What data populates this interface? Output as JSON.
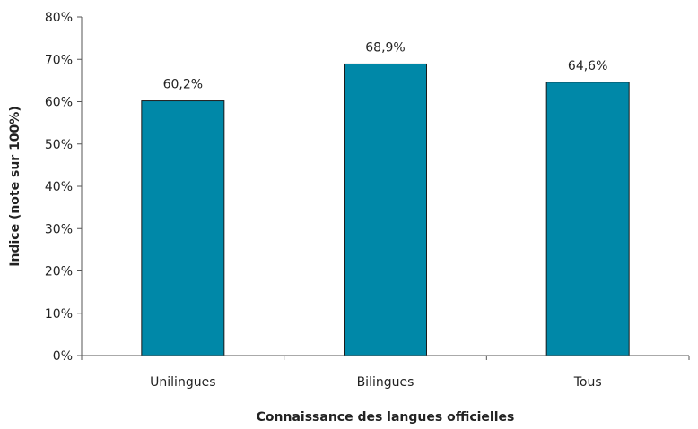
{
  "chart_data": {
    "type": "bar",
    "title": "",
    "xlabel": "Connaissance des langues officielles",
    "ylabel": "Indice (note sur 100%)",
    "categories": [
      "Unilingues",
      "Bilingues",
      "Tous"
    ],
    "values": [
      60.2,
      68.9,
      64.6
    ],
    "data_labels": [
      "60,2%",
      "68,9%",
      "64,6%"
    ],
    "ylim": [
      0,
      80
    ],
    "yticks": [
      0,
      10,
      20,
      30,
      40,
      50,
      60,
      70,
      80
    ],
    "ytick_labels": [
      "0%",
      "10%",
      "20%",
      "30%",
      "40%",
      "50%",
      "60%",
      "70%",
      "80%"
    ],
    "grid": false,
    "legend": "none",
    "bar_color": "#0088a8"
  }
}
